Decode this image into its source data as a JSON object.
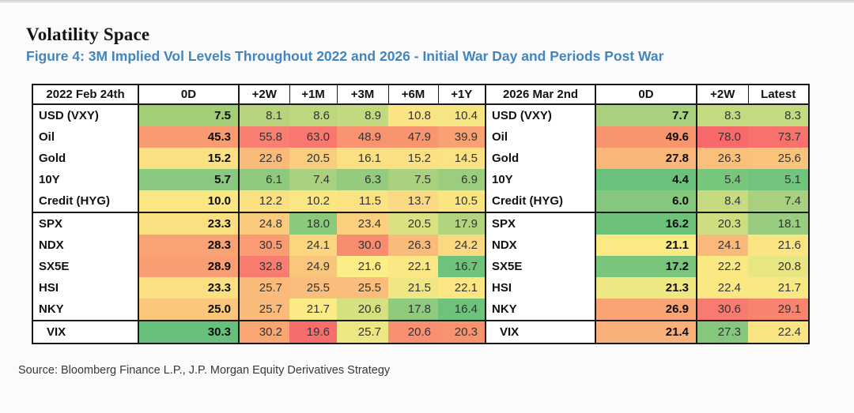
{
  "chart_data": {
    "type": "heatmap",
    "title": "Volatility Space",
    "subtitle": "Figure 4: 3M Implied Vol Levels Throughout 2022 and 2026 - Initial War Day and Periods Post War",
    "source": "Source: Bloomberg Finance L.P., J.P. Morgan Equity Derivatives Strategy",
    "accent_blue": "#4285bf",
    "colorscale": {
      "low_green": "#63be7b",
      "mid_yellow": "#fbe983",
      "high_red": "#f8696b"
    },
    "left_columns": [
      "2022 Feb 24th",
      "0D",
      "+2W",
      "+1M",
      "+3M",
      "+6M",
      "+1Y"
    ],
    "right_columns": [
      "2026 Mar 2nd",
      "0D",
      "+2W",
      "Latest"
    ],
    "rows": [
      {
        "label": "USD (VXY)",
        "left": {
          "values": [
            7.5,
            8.1,
            8.6,
            8.9,
            10.8,
            10.4
          ],
          "colors": [
            "#a4cd78",
            "#b5d47c",
            "#bcd77e",
            "#c2d980",
            "#fbe483",
            "#f5e583"
          ]
        },
        "right": {
          "values": [
            7.7,
            8.3,
            8.3
          ],
          "colors": [
            "#a8d07e",
            "#c3da80",
            "#c3da80"
          ]
        }
      },
      {
        "label": "Oil",
        "left": {
          "values": [
            45.3,
            55.8,
            63.0,
            48.9,
            47.9,
            39.9
          ],
          "colors": [
            "#f99b71",
            "#f87f71",
            "#f8776f",
            "#f8926f",
            "#f8956f",
            "#f9a173"
          ]
        },
        "right": {
          "values": [
            49.6,
            78.0,
            73.7
          ],
          "colors": [
            "#f8956f",
            "#f8696b",
            "#f8726d"
          ]
        }
      },
      {
        "label": "Gold",
        "left": {
          "values": [
            15.2,
            22.6,
            20.5,
            16.1,
            15.2,
            14.5
          ],
          "colors": [
            "#fbe184",
            "#fabb7a",
            "#facd7e",
            "#fbdf82",
            "#fbe183",
            "#fbe383"
          ]
        },
        "right": {
          "values": [
            27.8,
            26.3,
            25.6
          ],
          "colors": [
            "#fab77a",
            "#fabf7b",
            "#fac37c"
          ]
        }
      },
      {
        "label": "10Y",
        "left": {
          "values": [
            5.7,
            6.1,
            7.4,
            6.3,
            7.5,
            6.9
          ],
          "colors": [
            "#89c87e",
            "#8fc97e",
            "#aad17f",
            "#94cb7e",
            "#abd17f",
            "#9ccd7e"
          ]
        },
        "right": {
          "values": [
            4.4,
            5.4,
            5.1
          ],
          "colors": [
            "#6ac17b",
            "#78c57c",
            "#72c37c"
          ]
        }
      },
      {
        "label": "Credit (HYG)",
        "left": {
          "values": [
            10.0,
            12.2,
            10.2,
            11.5,
            13.7,
            10.5
          ],
          "colors": [
            "#fbe684",
            "#fbe082",
            "#fbe684",
            "#fbe283",
            "#f9d981",
            "#fbe583"
          ]
        },
        "right": {
          "values": [
            6.0,
            8.4,
            7.4
          ],
          "colors": [
            "#84c77d",
            "#c6db80",
            "#a8d07e"
          ]
        }
      },
      {
        "label": "SPX",
        "group_start": true,
        "left": {
          "values": [
            23.3,
            24.8,
            18.0,
            23.4,
            20.5,
            17.9
          ],
          "colors": [
            "#fbe082",
            "#facb7d",
            "#8bc97d",
            "#fad07e",
            "#d9e181",
            "#b3d47f"
          ]
        },
        "right": {
          "values": [
            16.2,
            20.3,
            18.1
          ],
          "colors": [
            "#6dc27b",
            "#cdde80",
            "#98cc7e"
          ]
        }
      },
      {
        "label": "NDX",
        "left": {
          "values": [
            28.3,
            30.5,
            24.1,
            30.0,
            26.3,
            24.2
          ],
          "colors": [
            "#f9a274",
            "#f99c72",
            "#fbd67f",
            "#f88c6f",
            "#faba7a",
            "#fbd980"
          ]
        },
        "right": {
          "values": [
            21.1,
            24.1,
            21.6
          ],
          "colors": [
            "#fbe983",
            "#fab97a",
            "#fbe583"
          ]
        }
      },
      {
        "label": "SX5E",
        "left": {
          "values": [
            28.9,
            32.8,
            24.9,
            21.6,
            22.1,
            16.7
          ],
          "colors": [
            "#f99e72",
            "#f87d70",
            "#fac67c",
            "#fcee86",
            "#fbe884",
            "#6ec27b"
          ]
        },
        "right": {
          "values": [
            17.2,
            22.2,
            20.8
          ],
          "colors": [
            "#79c57c",
            "#fae983",
            "#e7e682"
          ]
        }
      },
      {
        "label": "HSI",
        "left": {
          "values": [
            23.3,
            25.7,
            25.5,
            25.5,
            21.5,
            22.1
          ],
          "colors": [
            "#fbe082",
            "#fabb7a",
            "#fabd7b",
            "#fabd7b",
            "#eee783",
            "#fbe683"
          ]
        },
        "right": {
          "values": [
            21.3,
            22.4,
            21.7
          ],
          "colors": [
            "#eee883",
            "#fbe883",
            "#f7e883"
          ]
        }
      },
      {
        "label": "NKY",
        "left": {
          "values": [
            25.0,
            25.7,
            21.7,
            20.6,
            17.8,
            16.4
          ],
          "colors": [
            "#fac87d",
            "#fabb7a",
            "#fbeb84",
            "#d5e081",
            "#90ca7e",
            "#6fc27b"
          ]
        },
        "right": {
          "values": [
            26.9,
            30.6,
            29.1
          ],
          "colors": [
            "#f9a573",
            "#f87b6f",
            "#f8846f"
          ]
        }
      },
      {
        "label": "VIX",
        "group_start": true,
        "indent": true,
        "left": {
          "values": [
            30.3,
            30.2,
            19.6,
            25.7,
            20.6,
            20.3
          ],
          "colors": [
            "#66c07c",
            "#f9a673",
            "#f76d6c",
            "#ece783",
            "#f88f70",
            "#f8926f"
          ]
        },
        "right": {
          "values": [
            21.4,
            27.3,
            22.4
          ],
          "colors": [
            "#fab179",
            "#85c77d",
            "#fbe583"
          ]
        }
      }
    ]
  }
}
